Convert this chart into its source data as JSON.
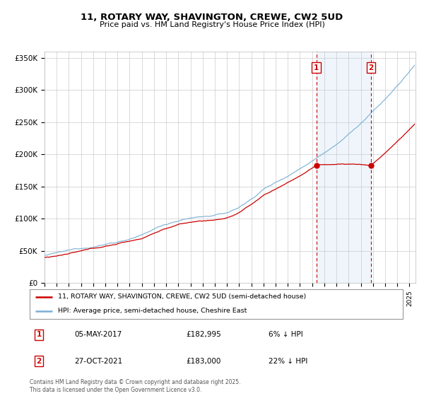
{
  "title": "11, ROTARY WAY, SHAVINGTON, CREWE, CW2 5UD",
  "subtitle": "Price paid vs. HM Land Registry's House Price Index (HPI)",
  "legend_label_red": "11, ROTARY WAY, SHAVINGTON, CREWE, CW2 5UD (semi-detached house)",
  "legend_label_blue": "HPI: Average price, semi-detached house, Cheshire East",
  "footer": "Contains HM Land Registry data © Crown copyright and database right 2025.\nThis data is licensed under the Open Government Licence v3.0.",
  "sale1_label": "1",
  "sale1_date": "05-MAY-2017",
  "sale1_price": "£182,995",
  "sale1_hpi": "6% ↓ HPI",
  "sale2_label": "2",
  "sale2_date": "27-OCT-2021",
  "sale2_price": "£183,000",
  "sale2_hpi": "22% ↓ HPI",
  "sale1_x": 2017.35,
  "sale1_y": 182995,
  "sale2_x": 2021.83,
  "sale2_y": 183000,
  "red_color": "#cc0000",
  "blue_color": "#7aafd4",
  "blue_fill": "#ddeeff",
  "vline_color": "#cc0000",
  "box_color": "#cc0000",
  "background_color": "#ffffff",
  "grid_color": "#cccccc",
  "ylim": [
    0,
    360000
  ],
  "xlim": [
    1995,
    2025.5
  ],
  "yticks": [
    0,
    50000,
    100000,
    150000,
    200000,
    250000,
    300000,
    350000
  ],
  "ytick_labels": [
    "£0",
    "£50K",
    "£100K",
    "£150K",
    "£200K",
    "£250K",
    "£300K",
    "£350K"
  ]
}
